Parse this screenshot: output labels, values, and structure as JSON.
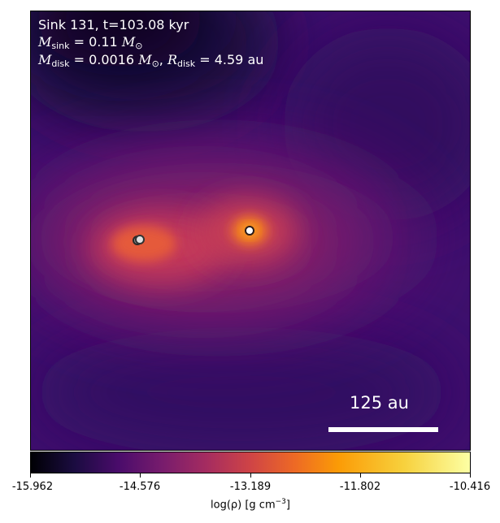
{
  "annotation": {
    "line1": "Sink 131, t=103.08 kyr",
    "msink_symbol": "M",
    "msink_sub": "sink",
    "msink_value": " = 0.11 ",
    "mdisk_symbol": "M",
    "mdisk_sub": "disk",
    "mdisk_value": " = 0.0016 ",
    "sun_symbol": "M",
    "sun_sub": "⊙",
    "rdisk_symbol": "R",
    "rdisk_sub": "disk",
    "rdisk_value": " = 4.59 au",
    "separator": ", "
  },
  "scalebar": {
    "label": "125 au"
  },
  "colorbar": {
    "tick_labels": [
      "-15.962",
      "-14.576",
      "-13.189",
      "-11.802",
      "-10.416"
    ],
    "title_prefix": "log(ρ) [g cm",
    "title_exp": "−3",
    "title_suffix": "]",
    "range": [
      -15.962,
      -10.416
    ],
    "colormap": "inferno"
  },
  "chart_data": {
    "type": "heatmap",
    "title": "Sink 131, t=103.08 kyr",
    "colorbar_label": "log(ρ) [g cm^-3]",
    "colorbar_range": [
      -15.962,
      -10.416
    ],
    "colorbar_ticks": [
      -15.962,
      -14.576,
      -13.189,
      -11.802,
      -10.416
    ],
    "colormap": "inferno",
    "scale_bar": "125 au",
    "annotations": [
      "M_sink = 0.11 M_sun",
      "M_disk = 0.0016 M_sun",
      "R_disk = 4.59 au"
    ],
    "sinks": [
      {
        "name": "primary sink",
        "outline": "white"
      },
      {
        "name": "companion sink",
        "outline": "dark"
      }
    ]
  }
}
